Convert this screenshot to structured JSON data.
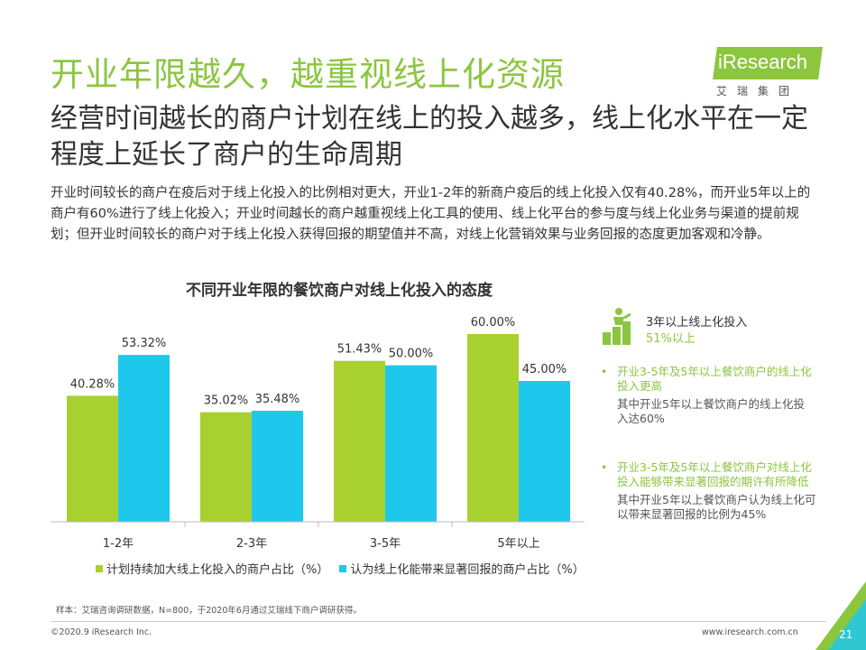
{
  "title": "开业年限越久，越重视线上化资源",
  "subtitle": "经营时间越长的商户计划在线上的投入越多，线上化水平在一定程度上延长了商户的生命周期",
  "description": "开业时间较长的商户在疫后对于线上化投入的比例相对更大，开业1-2年的新商户疫后的线上化投入仅有40.28%，而开业5年以上的商户有60%进行了线上化投入；开业时间越长的商户越重视线上化工具的使用、线上化平台的参与度与线上化业务与渠道的提前规划；但开业时间较长的商户对于线上化投入获得回报的期望值并不高，对线上化营销效果与业务回报的态度更加客观和冷静。",
  "logo": {
    "text": "iResearch",
    "cn": "艾瑞集团"
  },
  "side": {
    "icon": "business-growth-icon",
    "head1": "3年以上线上化投入",
    "head2": "51%以上",
    "bullets": [
      {
        "title": "开业3-5年及5年以上餐饮商户的线上化投入更高",
        "sub": "其中开业5年以上餐饮商户的线上化投入达60%"
      },
      {
        "title": "开业3-5年及5年以上餐饮商户对线上化投入能够带来显著回报的期许有所降低",
        "sub": "其中开业5年以上餐饮商户认为线上化可以带来显著回报的比例为45%"
      }
    ]
  },
  "source": "样本：艾瑞咨询调研数据，N=800，于2020年6月通过艾瑞线下商户调研获得。",
  "copyright": "©2020.9 iResearch Inc.",
  "website": "www.iresearch.com.cn",
  "page_number": "21",
  "colors": {
    "green": "#a8d130",
    "blue": "#1ec8ec",
    "accent": "#8cc63f"
  },
  "chart_data": {
    "type": "bar",
    "title": "不同开业年限的餐饮商户对线上化投入的态度",
    "categories": [
      "1-2年",
      "2-3年",
      "3-5年",
      "5年以上"
    ],
    "series": [
      {
        "name": "计划持续加大线上化投入的商户占比（%）",
        "values": [
          40.28,
          35.02,
          51.43,
          60.0
        ],
        "labels": [
          "40.28%",
          "35.02%",
          "51.43%",
          "60.00%"
        ],
        "color": "#a8d130"
      },
      {
        "name": "认为线上化能带来显著回报的商户占比（%）",
        "values": [
          53.32,
          35.48,
          50.0,
          45.0
        ],
        "labels": [
          "53.32%",
          "35.48%",
          "50.00%",
          "45.00%"
        ],
        "color": "#1ec8ec"
      }
    ],
    "ylim": [
      0,
      70
    ],
    "grid": false,
    "legend": "bottom"
  }
}
